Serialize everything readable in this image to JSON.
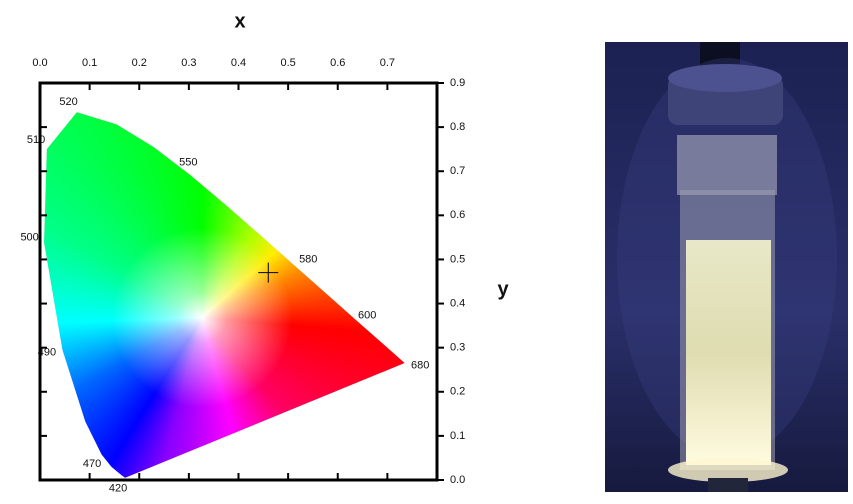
{
  "chart_data": {
    "type": "chromaticity",
    "x_label": "x",
    "y_label": "y",
    "xlim": [
      0,
      0.8
    ],
    "ylim": [
      0,
      0.9
    ],
    "xticks": [
      {
        "value": 0,
        "label": "0.0"
      },
      {
        "value": 0.1,
        "label": "0.1"
      },
      {
        "value": 0.2,
        "label": "0.2"
      },
      {
        "value": 0.3,
        "label": "0.3"
      },
      {
        "value": 0.4,
        "label": "0.4"
      },
      {
        "value": 0.5,
        "label": "0.5"
      },
      {
        "value": 0.6,
        "label": "0.6"
      },
      {
        "value": 0.7,
        "label": "0.7"
      }
    ],
    "yticks": [
      {
        "value": 0,
        "label": "0.0"
      },
      {
        "value": 0.1,
        "label": "0.1"
      },
      {
        "value": 0.2,
        "label": "0.2"
      },
      {
        "value": 0.3,
        "label": "0.3"
      },
      {
        "value": 0.4,
        "label": "0.4"
      },
      {
        "value": 0.5,
        "label": "0.5"
      },
      {
        "value": 0.6,
        "label": "0.6"
      },
      {
        "value": 0.7,
        "label": "0.7"
      },
      {
        "value": 0.8,
        "label": "0.8"
      },
      {
        "value": 0.9,
        "label": "0.9"
      }
    ],
    "locus": {
      "x": [
        0.1714,
        0.1644,
        0.144,
        0.1241,
        0.0913,
        0.0454,
        0.0082,
        0.0139,
        0.0743,
        0.1547,
        0.2296,
        0.3016,
        0.3731,
        0.4441,
        0.5125,
        0.5752,
        0.627,
        0.6915,
        0.7347
      ],
      "y": [
        0.0051,
        0.0109,
        0.0297,
        0.0578,
        0.1327,
        0.295,
        0.5384,
        0.7502,
        0.8338,
        0.8059,
        0.7543,
        0.6923,
        0.6245,
        0.5547,
        0.4866,
        0.4242,
        0.3725,
        0.3083,
        0.2653
      ],
      "labels": [
        "420",
        null,
        null,
        "470",
        null,
        "490",
        "500",
        "510",
        "520",
        null,
        null,
        "550",
        null,
        null,
        "580",
        null,
        "600",
        null,
        "680"
      ]
    },
    "point": {
      "x": 0.46,
      "y": 0.47
    }
  }
}
